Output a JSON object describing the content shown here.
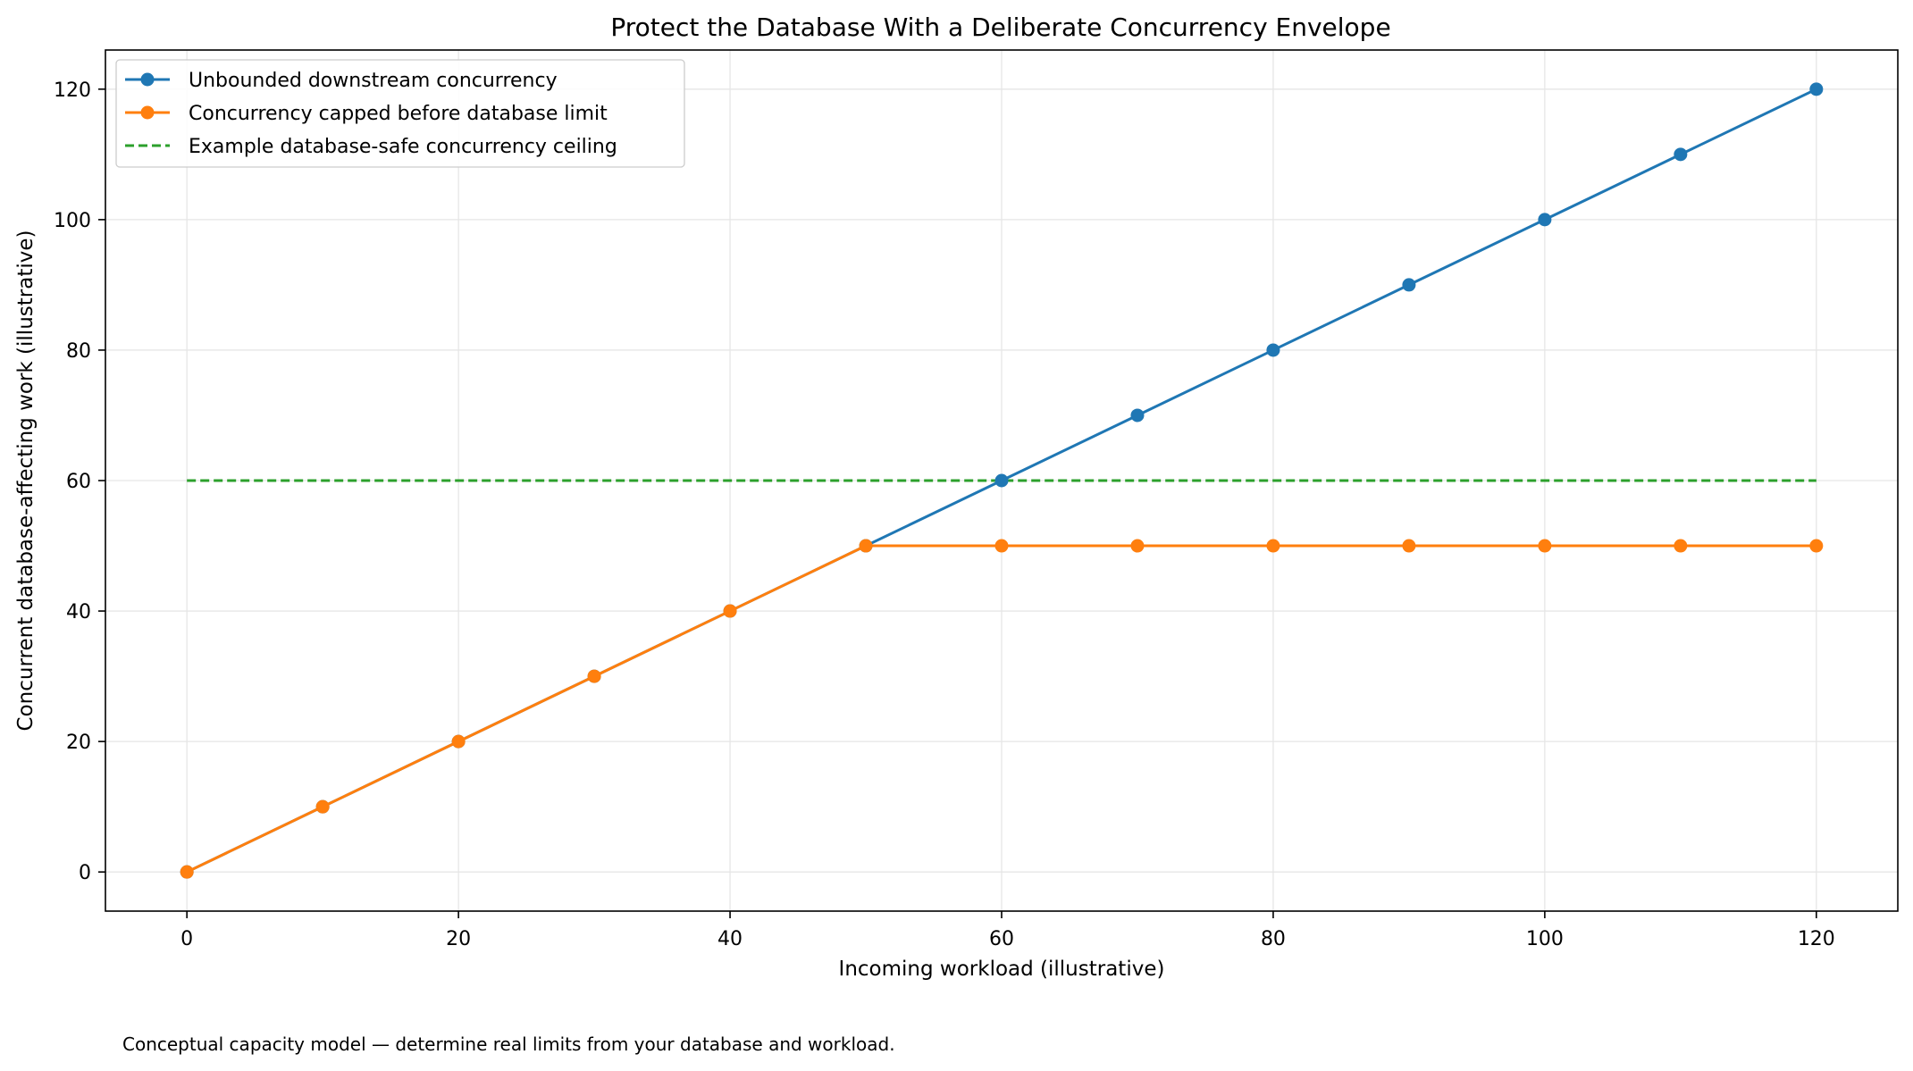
{
  "chart_data": {
    "type": "line",
    "title": "Protect the Database With a Deliberate Concurrency Envelope",
    "xlabel": "Incoming workload (illustrative)",
    "ylabel": "Concurrent database-affecting work (illustrative)",
    "xlim": [
      -6,
      126
    ],
    "ylim": [
      -6,
      126
    ],
    "xticks": [
      0,
      20,
      40,
      60,
      80,
      100,
      120
    ],
    "yticks": [
      0,
      20,
      40,
      60,
      80,
      100,
      120
    ],
    "grid": true,
    "legend_position": "top-left",
    "x": [
      0,
      10,
      20,
      30,
      40,
      50,
      60,
      70,
      80,
      90,
      100,
      110,
      120
    ],
    "series": [
      {
        "name": "Unbounded downstream concurrency",
        "color": "#1f77b4",
        "style": "solid-markers",
        "values": [
          0,
          10,
          20,
          30,
          40,
          50,
          60,
          70,
          80,
          90,
          100,
          110,
          120
        ]
      },
      {
        "name": "Concurrency capped before database limit",
        "color": "#ff7f0e",
        "style": "solid-markers",
        "values": [
          0,
          10,
          20,
          30,
          40,
          50,
          50,
          50,
          50,
          50,
          50,
          50,
          50
        ]
      },
      {
        "name": "Example database-safe concurrency ceiling",
        "color": "#2ca02c",
        "style": "dashed",
        "values": [
          60,
          60,
          60,
          60,
          60,
          60,
          60,
          60,
          60,
          60,
          60,
          60,
          60
        ]
      }
    ],
    "footnote": "Conceptual capacity model — determine real limits from your database and workload."
  }
}
